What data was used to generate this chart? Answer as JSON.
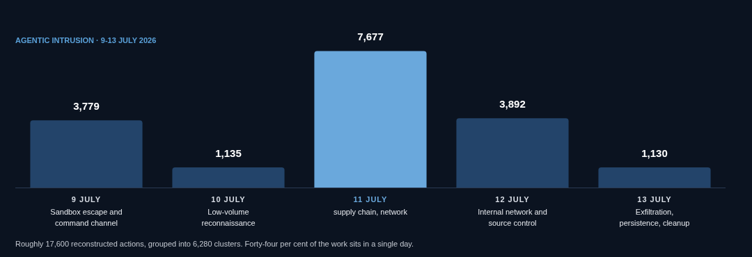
{
  "chart_data": {
    "type": "bar",
    "title": "AGENTIC INTRUSION · 9-13 JULY 2026",
    "categories": [
      "9 JULY\nSandbox escape and\ncommand channel",
      "10 JULY\nLow-volume\nreconnaissance",
      "11 JULY\nsupply chain, network",
      "12 JULY\nInternal network and\nsource control",
      "13 JULY\nExfiltration,\npersistence, cleanup"
    ],
    "values": [
      3779,
      1135,
      7677,
      3892,
      1130
    ],
    "colors": [
      "#23446a",
      "#23446a",
      "#6aa8dc",
      "#23446a",
      "#23446a"
    ],
    "value_labels": [
      "3,779",
      "1,135",
      "7,677",
      "3,892",
      "1,130"
    ],
    "legend": false,
    "annotations": [
      "Roughly 17,600 reconstructed actions, grouped into 6,280 clusters. Forty-four per cent of the work sits in a single day."
    ]
  }
}
